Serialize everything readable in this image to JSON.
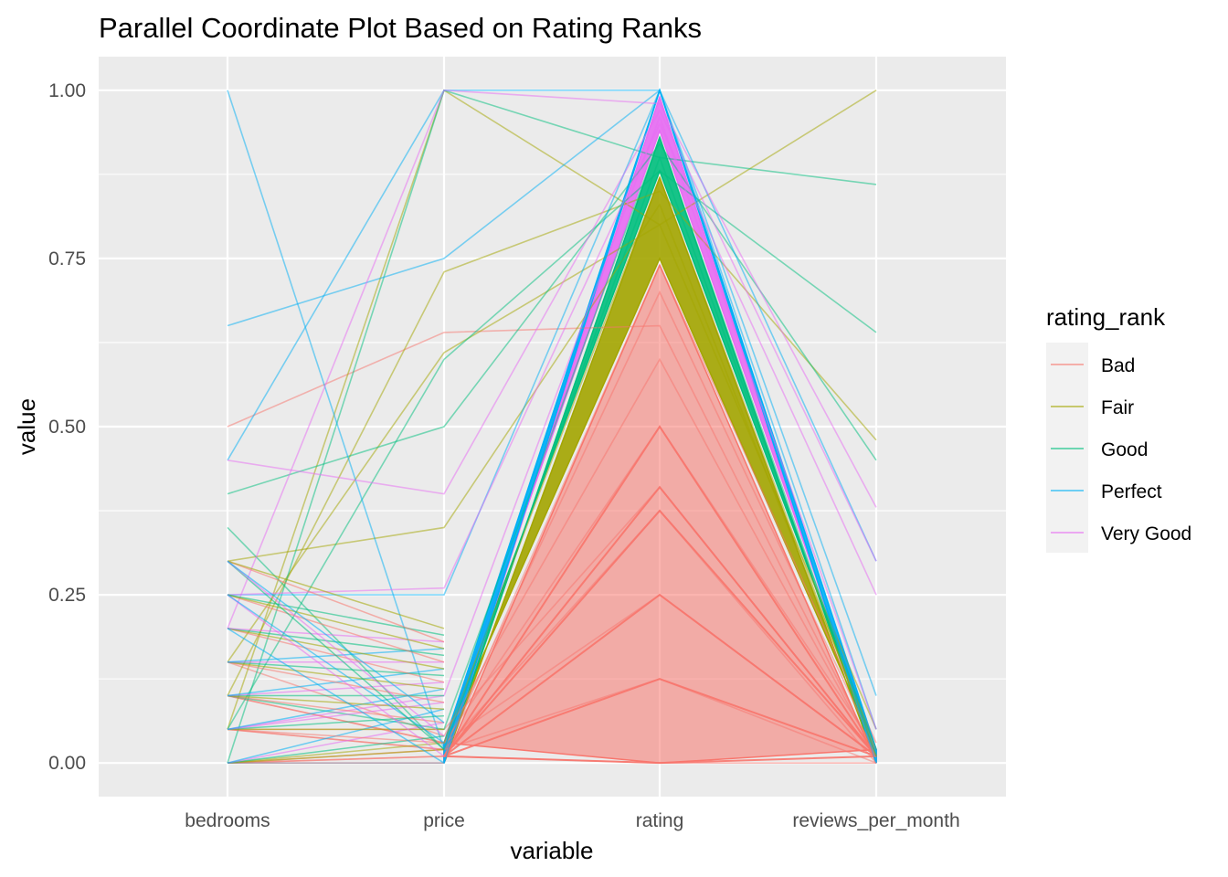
{
  "chart_data": {
    "type": "line",
    "subtype": "parallel-coordinates",
    "title": "Parallel Coordinate Plot Based on Rating Ranks",
    "xlabel": "variable",
    "ylabel": "value",
    "ylim": [
      -0.05,
      1.05
    ],
    "yticks": [
      0.0,
      0.25,
      0.5,
      0.75,
      1.0
    ],
    "ytick_labels": [
      "0.00",
      "0.25",
      "0.50",
      "0.75",
      "1.00"
    ],
    "categories": [
      "bedrooms",
      "price",
      "rating",
      "reviews_per_month"
    ],
    "legend": {
      "title": "rating_rank",
      "position": "right",
      "entries": [
        {
          "name": "Bad",
          "color": "#F8766D"
        },
        {
          "name": "Fair",
          "color": "#A3A500"
        },
        {
          "name": "Good",
          "color": "#00BF7D"
        },
        {
          "name": "Perfect",
          "color": "#00B0F6"
        },
        {
          "name": "Very Good",
          "color": "#E76BF3"
        }
      ]
    },
    "grid": true,
    "series": [
      {
        "name": "Bad",
        "rating_range": [
          0.0,
          0.74
        ],
        "notable_rating_levels": [
          0.0,
          0.125,
          0.25,
          0.375,
          0.41,
          0.5
        ],
        "lines": [
          [
            0.0,
            0.01,
            0.0,
            0.0
          ],
          [
            0.05,
            0.02,
            0.125,
            0.0
          ],
          [
            0.1,
            0.03,
            0.25,
            0.01
          ],
          [
            0.0,
            0.02,
            0.375,
            0.0
          ],
          [
            0.05,
            0.05,
            0.41,
            0.01
          ],
          [
            0.1,
            0.03,
            0.5,
            0.02
          ],
          [
            0.15,
            0.04,
            0.6,
            0.01
          ],
          [
            0.5,
            0.64,
            0.65,
            0.01
          ],
          [
            0.05,
            0.02,
            0.7,
            0.02
          ],
          [
            0.0,
            0.01,
            0.74,
            0.03
          ]
        ]
      },
      {
        "name": "Fair",
        "rating_range": [
          0.75,
          0.87
        ],
        "lines": [
          [
            0.05,
            1.0,
            0.8,
            1.0
          ],
          [
            0.1,
            0.73,
            0.85,
            0.48
          ],
          [
            0.15,
            0.61,
            0.8,
            0.05
          ],
          [
            0.3,
            0.35,
            0.83,
            0.02
          ],
          [
            0.0,
            0.03,
            0.87,
            0.01
          ]
        ]
      },
      {
        "name": "Good",
        "rating_range": [
          0.88,
          0.93
        ],
        "lines": [
          [
            0.0,
            1.0,
            0.9,
            0.86
          ],
          [
            0.05,
            0.6,
            0.88,
            0.64
          ],
          [
            0.4,
            0.5,
            0.92,
            0.45
          ],
          [
            0.35,
            0.02,
            0.9,
            0.02
          ],
          [
            0.1,
            0.05,
            0.93,
            0.01
          ]
        ]
      },
      {
        "name": "Perfect",
        "rating_range": [
          1.0,
          1.0
        ],
        "lines": [
          [
            1.0,
            0.02,
            1.0,
            0.02
          ],
          [
            0.65,
            0.75,
            1.0,
            0.3
          ],
          [
            0.45,
            1.0,
            1.0,
            0.1
          ],
          [
            0.25,
            0.25,
            1.0,
            0.05
          ],
          [
            0.0,
            0.0,
            1.0,
            0.0
          ]
        ]
      },
      {
        "name": "Very Good",
        "rating_range": [
          0.94,
          0.99
        ],
        "lines": [
          [
            0.45,
            0.4,
            0.97,
            0.3
          ],
          [
            0.2,
            1.0,
            0.98,
            0.38
          ],
          [
            0.25,
            0.26,
            0.95,
            0.25
          ],
          [
            0.05,
            0.1,
            0.96,
            0.05
          ]
        ]
      }
    ]
  }
}
